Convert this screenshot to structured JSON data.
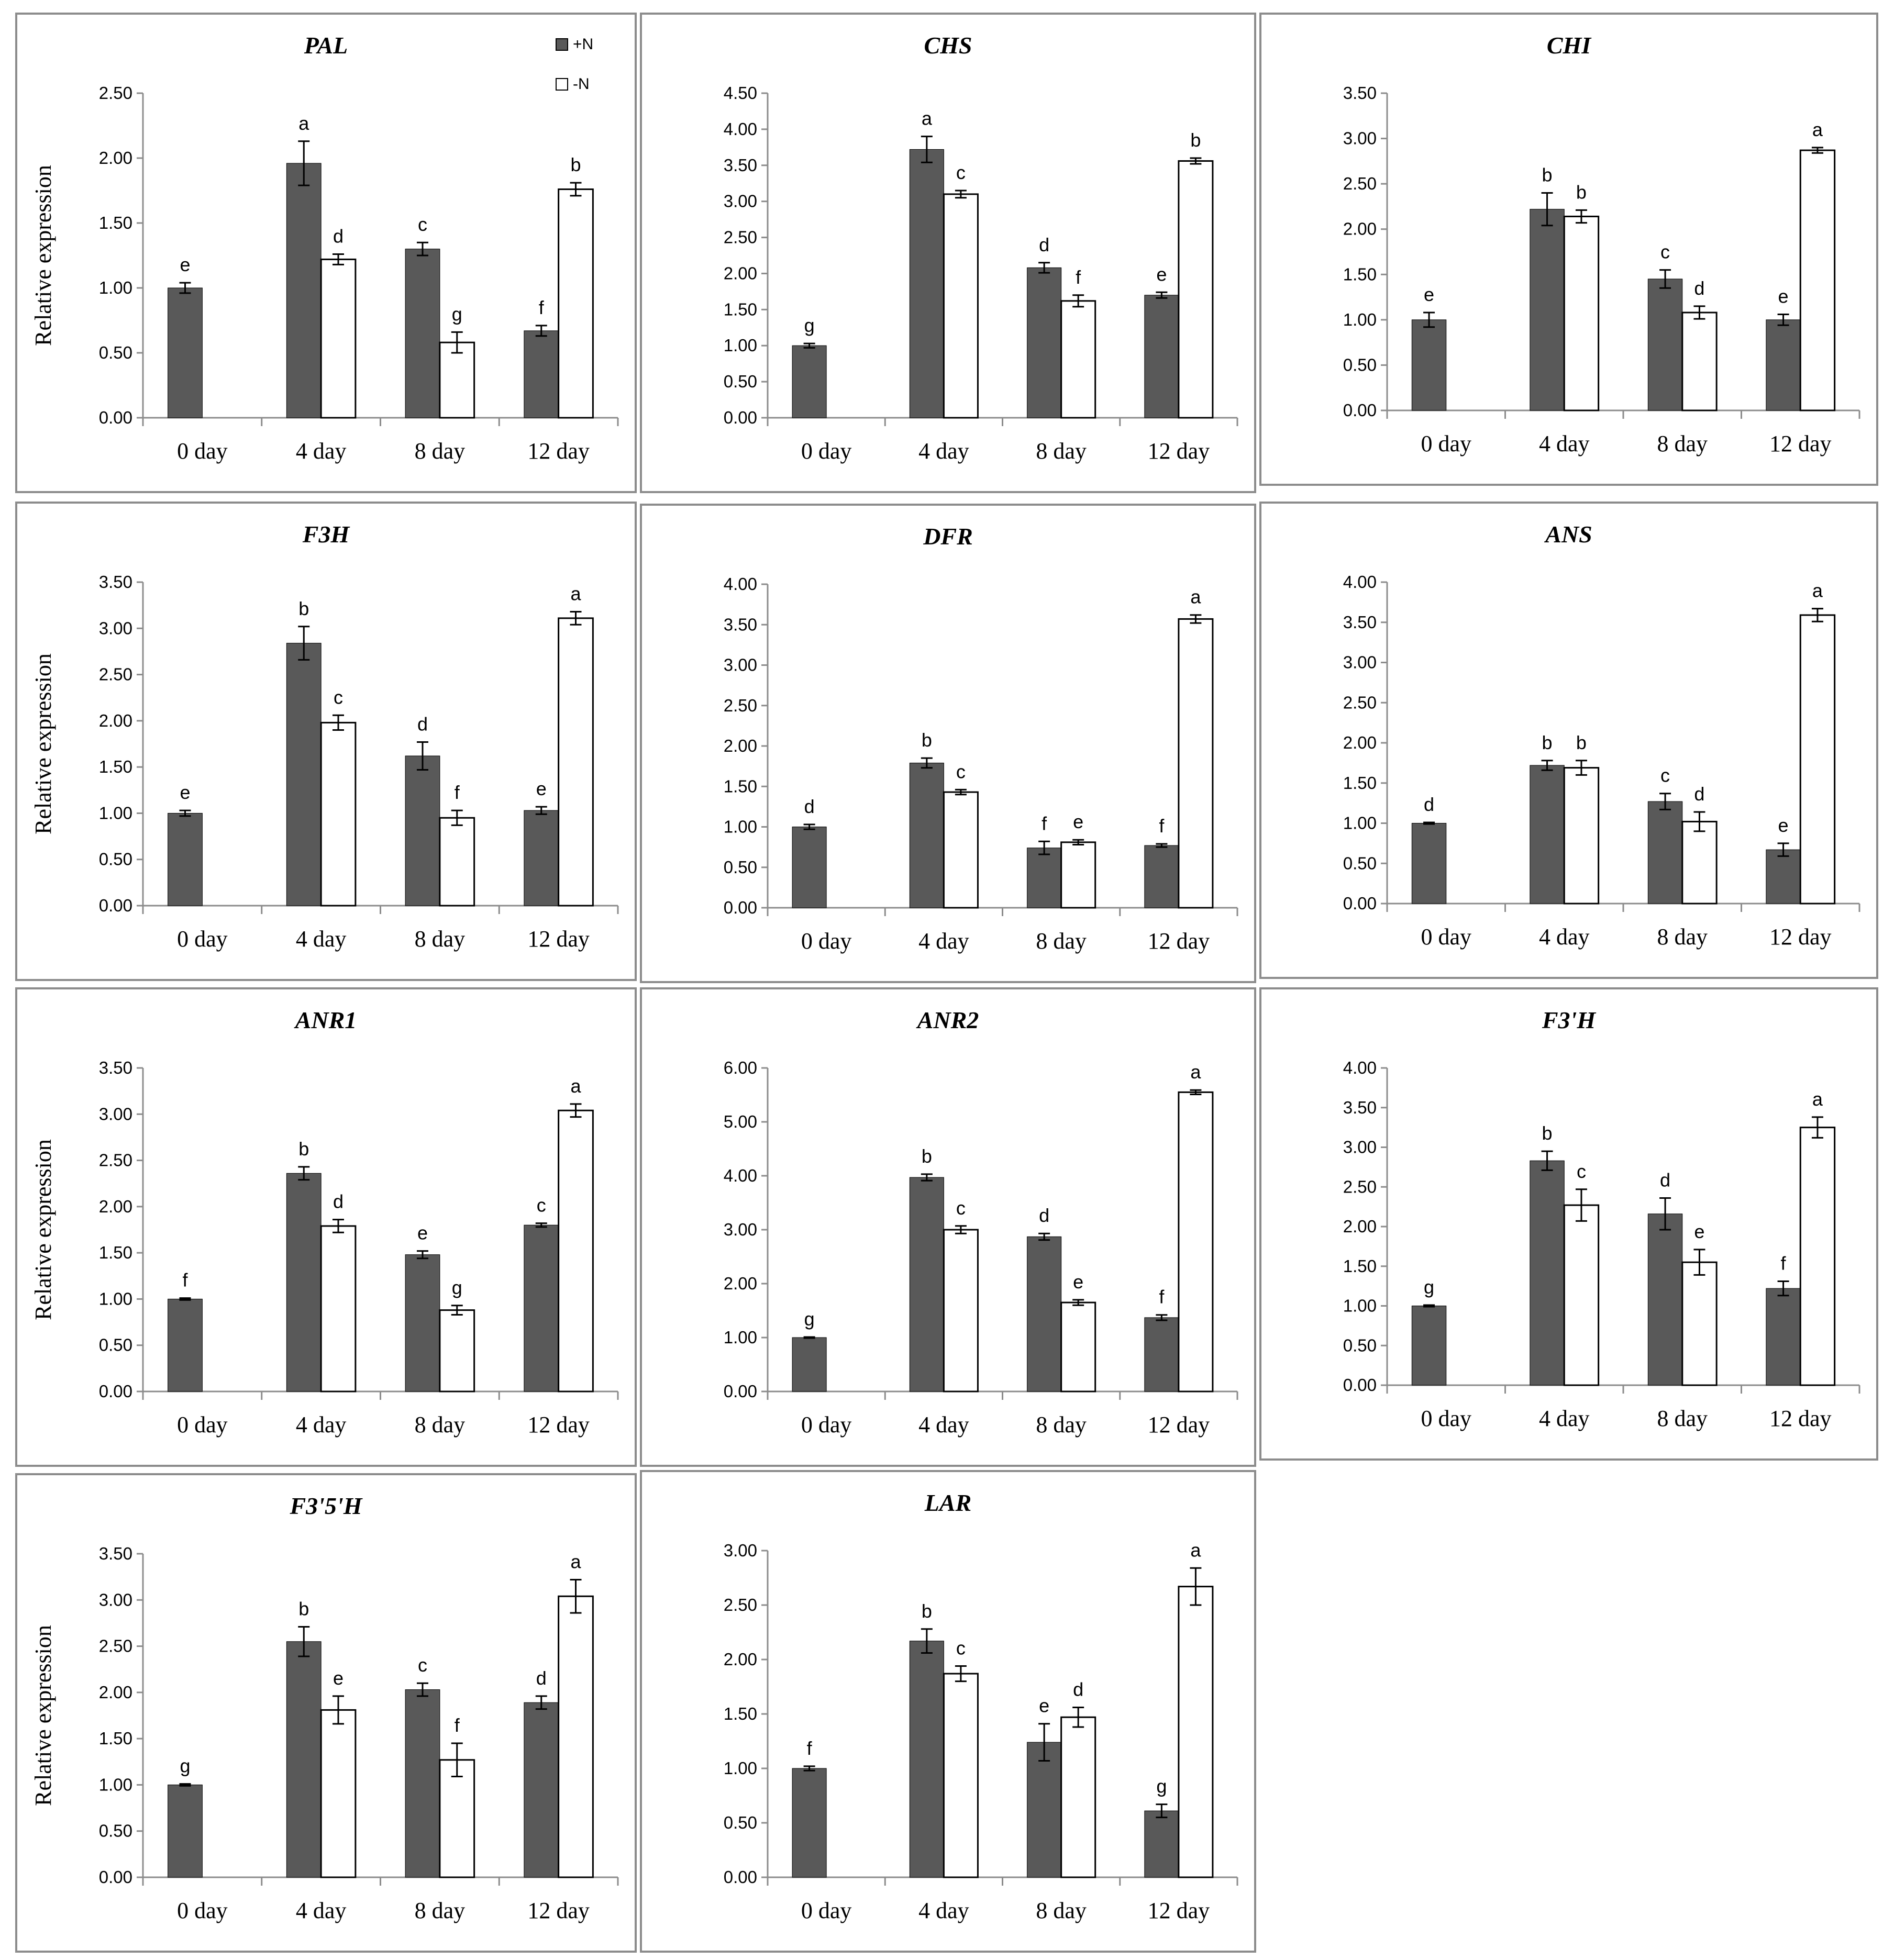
{
  "figure": {
    "legend": [
      {
        "label": "+N",
        "color": "#595959"
      },
      {
        "label": "-N",
        "color": "#ffffff"
      }
    ],
    "colors": {
      "dark_bar": "#595959",
      "light_bar": "#ffffff",
      "axis": "#8c8c8c",
      "frame": "#8c8c8c"
    }
  },
  "chart_data": [
    {
      "type": "bar",
      "title": "PAL",
      "ylabel": "Relative expression",
      "ylim": [
        0,
        2.5
      ],
      "yticks": [
        "0.00",
        "0.50",
        "1.00",
        "1.50",
        "2.00",
        "2.50"
      ],
      "categories": [
        "0 day",
        "4 day",
        "8 day",
        "12 day"
      ],
      "series": [
        {
          "name": "+N",
          "values": [
            1.0,
            1.96,
            1.3,
            0.67
          ],
          "errors": [
            0.04,
            0.17,
            0.05,
            0.04
          ],
          "labels": [
            "e",
            "a",
            "c",
            "f"
          ]
        },
        {
          "name": "-N",
          "values": [
            null,
            1.22,
            0.58,
            1.76
          ],
          "errors": [
            null,
            0.04,
            0.08,
            0.05
          ],
          "labels": [
            null,
            "d",
            "g",
            "b"
          ]
        }
      ]
    },
    {
      "type": "bar",
      "title": "CHS",
      "ylabel": "",
      "ylim": [
        0,
        4.5
      ],
      "yticks": [
        "0.00",
        "0.50",
        "1.00",
        "1.50",
        "2.00",
        "2.50",
        "3.00",
        "3.50",
        "4.00",
        "4.50"
      ],
      "categories": [
        "0 day",
        "4 day",
        "8 day",
        "12 day"
      ],
      "series": [
        {
          "name": "+N",
          "values": [
            1.0,
            3.72,
            2.08,
            1.7
          ],
          "errors": [
            0.03,
            0.18,
            0.07,
            0.04
          ],
          "labels": [
            "g",
            "a",
            "d",
            "e"
          ]
        },
        {
          "name": "-N",
          "values": [
            null,
            3.1,
            1.62,
            3.56
          ],
          "errors": [
            null,
            0.05,
            0.08,
            0.04
          ],
          "labels": [
            null,
            "c",
            "f",
            "b"
          ]
        }
      ]
    },
    {
      "type": "bar",
      "title": "CHI",
      "ylabel": "",
      "ylim": [
        0,
        3.5
      ],
      "yticks": [
        "0.00",
        "0.50",
        "1.00",
        "1.50",
        "2.00",
        "2.50",
        "3.00",
        "3.50"
      ],
      "categories": [
        "0 day",
        "4 day",
        "8 day",
        "12 day"
      ],
      "series": [
        {
          "name": "+N",
          "values": [
            1.0,
            2.22,
            1.45,
            1.0
          ],
          "errors": [
            0.08,
            0.18,
            0.1,
            0.06
          ],
          "labels": [
            "e",
            "b",
            "c",
            "e"
          ]
        },
        {
          "name": "-N",
          "values": [
            null,
            2.14,
            1.08,
            2.87
          ],
          "errors": [
            null,
            0.07,
            0.07,
            0.03
          ],
          "labels": [
            null,
            "b",
            "d",
            "a"
          ]
        }
      ]
    },
    {
      "type": "bar",
      "title": "F3H",
      "ylabel": "Relative expression",
      "ylim": [
        0,
        3.5
      ],
      "yticks": [
        "0.00",
        "0.50",
        "1.00",
        "1.50",
        "2.00",
        "2.50",
        "3.00",
        "3.50"
      ],
      "categories": [
        "0 day",
        "4 day",
        "8 day",
        "12 day"
      ],
      "series": [
        {
          "name": "+N",
          "values": [
            1.0,
            2.84,
            1.62,
            1.03
          ],
          "errors": [
            0.03,
            0.18,
            0.15,
            0.04
          ],
          "labels": [
            "e",
            "b",
            "d",
            "e"
          ]
        },
        {
          "name": "-N",
          "values": [
            null,
            1.98,
            0.95,
            3.11
          ],
          "errors": [
            null,
            0.08,
            0.08,
            0.07
          ],
          "labels": [
            null,
            "c",
            "f",
            "a"
          ]
        }
      ]
    },
    {
      "type": "bar",
      "title": "DFR",
      "ylabel": "",
      "ylim": [
        0,
        4
      ],
      "yticks": [
        "0.00",
        "0.50",
        "1.00",
        "1.50",
        "2.00",
        "2.50",
        "3.00",
        "3.50",
        "4.00"
      ],
      "categories": [
        "0 day",
        "4 day",
        "8 day",
        "12 day"
      ],
      "series": [
        {
          "name": "+N",
          "values": [
            1.0,
            1.79,
            0.74,
            0.77
          ],
          "errors": [
            0.03,
            0.06,
            0.08,
            0.02
          ],
          "labels": [
            "d",
            "b",
            "f",
            "f"
          ]
        },
        {
          "name": "-N",
          "values": [
            null,
            1.43,
            0.81,
            3.57
          ],
          "errors": [
            null,
            0.03,
            0.03,
            0.05
          ],
          "labels": [
            null,
            "c",
            "e",
            "a"
          ]
        }
      ]
    },
    {
      "type": "bar",
      "title": "ANS",
      "ylabel": "",
      "ylim": [
        0,
        4
      ],
      "yticks": [
        "0.00",
        "0.50",
        "1.00",
        "1.50",
        "2.00",
        "2.50",
        "3.00",
        "3.50",
        "4.00"
      ],
      "categories": [
        "0 day",
        "4 day",
        "8 day",
        "12 day"
      ],
      "series": [
        {
          "name": "+N",
          "values": [
            1.0,
            1.72,
            1.27,
            0.67
          ],
          "errors": [
            0.01,
            0.06,
            0.1,
            0.08
          ],
          "labels": [
            "d",
            "b",
            "c",
            "e"
          ]
        },
        {
          "name": "-N",
          "values": [
            null,
            1.69,
            1.02,
            3.59
          ],
          "errors": [
            null,
            0.09,
            0.12,
            0.08
          ],
          "labels": [
            null,
            "b",
            "d",
            "a"
          ]
        }
      ]
    },
    {
      "type": "bar",
      "title": "ANR1",
      "ylabel": "Relative expression",
      "ylim": [
        0,
        3.5
      ],
      "yticks": [
        "0.00",
        "0.50",
        "1.00",
        "1.50",
        "2.00",
        "2.50",
        "3.00",
        "3.50"
      ],
      "categories": [
        "0 day",
        "4 day",
        "8 day",
        "12 day"
      ],
      "series": [
        {
          "name": "+N",
          "values": [
            1.0,
            2.36,
            1.48,
            1.8
          ],
          "errors": [
            0.01,
            0.07,
            0.04,
            0.02
          ],
          "labels": [
            "f",
            "b",
            "e",
            "c"
          ]
        },
        {
          "name": "-N",
          "values": [
            null,
            1.79,
            0.88,
            3.04
          ],
          "errors": [
            null,
            0.07,
            0.05,
            0.07
          ],
          "labels": [
            null,
            "d",
            "g",
            "a"
          ]
        }
      ]
    },
    {
      "type": "bar",
      "title": "ANR2",
      "ylabel": "",
      "ylim": [
        0,
        6
      ],
      "yticks": [
        "0.00",
        "1.00",
        "2.00",
        "3.00",
        "4.00",
        "5.00",
        "6.00"
      ],
      "categories": [
        "0 day",
        "4 day",
        "8 day",
        "12 day"
      ],
      "series": [
        {
          "name": "+N",
          "values": [
            1.0,
            3.97,
            2.87,
            1.37
          ],
          "errors": [
            0.01,
            0.06,
            0.06,
            0.05
          ],
          "labels": [
            "g",
            "b",
            "d",
            "f"
          ]
        },
        {
          "name": "-N",
          "values": [
            null,
            3.0,
            1.65,
            5.55
          ],
          "errors": [
            null,
            0.07,
            0.05,
            0.04
          ],
          "labels": [
            null,
            "c",
            "e",
            "a"
          ]
        }
      ]
    },
    {
      "type": "bar",
      "title": "F3'H",
      "ylabel": "",
      "ylim": [
        0,
        4
      ],
      "yticks": [
        "0.00",
        "0.50",
        "1.00",
        "1.50",
        "2.00",
        "2.50",
        "3.00",
        "3.50",
        "4.00"
      ],
      "categories": [
        "0 day",
        "4 day",
        "8 day",
        "12 day"
      ],
      "series": [
        {
          "name": "+N",
          "values": [
            1.0,
            2.83,
            2.16,
            1.22
          ],
          "errors": [
            0.01,
            0.12,
            0.2,
            0.09
          ],
          "labels": [
            "g",
            "b",
            "d",
            "f"
          ]
        },
        {
          "name": "-N",
          "values": [
            null,
            2.27,
            1.55,
            3.25
          ],
          "errors": [
            null,
            0.2,
            0.16,
            0.13
          ],
          "labels": [
            null,
            "c",
            "e",
            "a"
          ]
        }
      ]
    },
    {
      "type": "bar",
      "title": "F3'5'H",
      "ylabel": "Relative expression",
      "ylim": [
        0,
        3.5
      ],
      "yticks": [
        "0.00",
        "0.50",
        "1.00",
        "1.50",
        "2.00",
        "2.50",
        "3.00",
        "3.50"
      ],
      "categories": [
        "0 day",
        "4 day",
        "8 day",
        "12 day"
      ],
      "series": [
        {
          "name": "+N",
          "values": [
            1.0,
            2.55,
            2.03,
            1.89
          ],
          "errors": [
            0.01,
            0.16,
            0.07,
            0.07
          ],
          "labels": [
            "g",
            "b",
            "c",
            "d"
          ]
        },
        {
          "name": "-N",
          "values": [
            null,
            1.81,
            1.27,
            3.04
          ],
          "errors": [
            null,
            0.15,
            0.18,
            0.18
          ],
          "labels": [
            null,
            "e",
            "f",
            "a"
          ]
        }
      ]
    },
    {
      "type": "bar",
      "title": "LAR",
      "ylabel": "",
      "ylim": [
        0,
        3
      ],
      "yticks": [
        "0.00",
        "0.50",
        "1.00",
        "1.50",
        "2.00",
        "2.50",
        "3.00"
      ],
      "categories": [
        "0 day",
        "4 day",
        "8 day",
        "12 day"
      ],
      "series": [
        {
          "name": "+N",
          "values": [
            1.0,
            2.17,
            1.24,
            0.61
          ],
          "errors": [
            0.02,
            0.11,
            0.17,
            0.06
          ],
          "labels": [
            "f",
            "b",
            "e",
            "g"
          ]
        },
        {
          "name": "-N",
          "values": [
            null,
            1.87,
            1.47,
            2.67
          ],
          "errors": [
            null,
            0.07,
            0.09,
            0.17
          ],
          "labels": [
            null,
            "c",
            "d",
            "a"
          ]
        }
      ]
    }
  ]
}
